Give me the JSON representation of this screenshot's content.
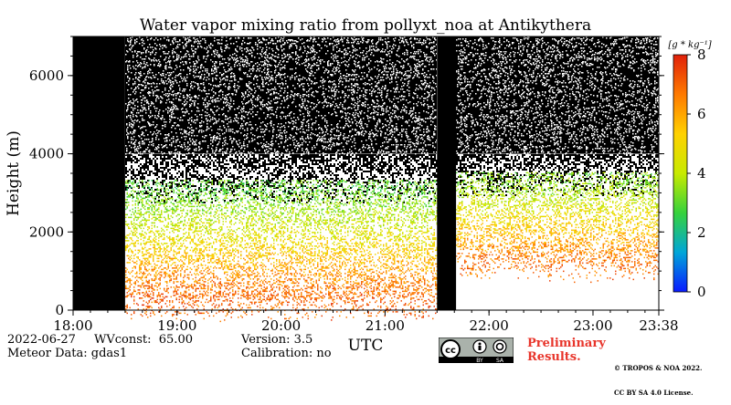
{
  "chart_data": {
    "type": "heatmap",
    "title": "Water vapor mixing ratio from pollyxt_noa at Antikythera",
    "ylabel": "Height (m)",
    "xlabel": "UTC",
    "x_tick_labels": [
      "18:00",
      "19:00",
      "20:00",
      "21:00",
      "22:00",
      "23:00",
      "23:38"
    ],
    "x_tick_hours": [
      18,
      19,
      20,
      21,
      22,
      23,
      23.633
    ],
    "xlim_hours": [
      18,
      23.633
    ],
    "ylim": [
      0,
      7000
    ],
    "y_ticks": [
      0,
      2000,
      4000,
      6000
    ],
    "y_tick_labels": [
      "0",
      "2000",
      "4000",
      "6000"
    ],
    "no_data_periods_hours": [
      [
        18.0,
        18.5
      ],
      [
        21.5,
        21.683
      ]
    ],
    "colorbar": {
      "label": "[g * kg⁻¹]",
      "range": [
        0,
        8
      ],
      "ticks": [
        0,
        2,
        4,
        6,
        8
      ],
      "tick_labels": [
        "0",
        "2",
        "4",
        "6",
        "8"
      ],
      "colormap": [
        "#0a1aff",
        "#00a6d8",
        "#36d23c",
        "#c8ea00",
        "#ffd100",
        "#ff7a00",
        "#e0200a"
      ]
    },
    "profile_segments": [
      {
        "start_hour": 18.5,
        "end_hour": 21.5,
        "profile": [
          {
            "height": 300,
            "value": 7.0
          },
          {
            "height": 700,
            "value": 6.6
          },
          {
            "height": 1100,
            "value": 6.0
          },
          {
            "height": 1500,
            "value": 5.3
          },
          {
            "height": 1900,
            "value": 4.6
          },
          {
            "height": 2300,
            "value": 4.0
          },
          {
            "height": 2700,
            "value": 3.5
          },
          {
            "height": 3100,
            "value": 3.0
          }
        ]
      },
      {
        "start_hour": 21.683,
        "end_hour": 23.633,
        "profile": [
          {
            "height": 1300,
            "value": 6.8
          },
          {
            "height": 1700,
            "value": 6.1
          },
          {
            "height": 2100,
            "value": 5.4
          },
          {
            "height": 2500,
            "value": 4.7
          },
          {
            "height": 2900,
            "value": 4.0
          },
          {
            "height": 3300,
            "value": 3.4
          }
        ]
      }
    ],
    "background_above_signal": "black (noise)",
    "background_below_signal": "white (no retrieval)"
  },
  "info": {
    "date": "2022-06-27",
    "wvconst": "WVconst:  65.00",
    "meteor": "Meteor Data: gdas1",
    "version": "Version: 3.5",
    "calibration": "Calibration: no",
    "preliminary_line1": "Preliminary",
    "preliminary_line2": "Results.",
    "copyright_line1": "© TROPOS & NOA 2022.",
    "copyright_line2": "CC BY SA 4.0 License."
  },
  "badge": {
    "cc_text": "cc",
    "by_text": "BY",
    "sa_text": "SA"
  }
}
